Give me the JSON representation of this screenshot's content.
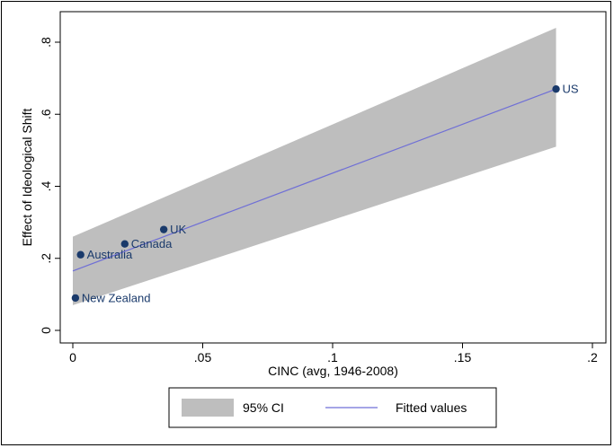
{
  "chart_data": {
    "type": "scatter",
    "title": "",
    "xlabel": "CINC (avg, 1946-2008)",
    "ylabel": "Effect of Ideological Shift",
    "xlim": [
      0,
      0.2
    ],
    "ylim": [
      0,
      0.8
    ],
    "x_ticks": [
      {
        "value": 0,
        "label": "0"
      },
      {
        "value": 0.05,
        "label": ".05"
      },
      {
        "value": 0.1,
        "label": ".1"
      },
      {
        "value": 0.15,
        "label": ".15"
      },
      {
        "value": 0.2,
        "label": ".2"
      }
    ],
    "y_ticks": [
      {
        "value": 0,
        "label": "0"
      },
      {
        "value": 0.2,
        "label": ".2"
      },
      {
        "value": 0.4,
        "label": ".4"
      },
      {
        "value": 0.6,
        "label": ".6"
      },
      {
        "value": 0.8,
        "label": ".8"
      }
    ],
    "points": [
      {
        "label": "New Zealand",
        "x": 0.001,
        "y": 0.09
      },
      {
        "label": "Australia",
        "x": 0.003,
        "y": 0.21
      },
      {
        "label": "Canada",
        "x": 0.02,
        "y": 0.24
      },
      {
        "label": "UK",
        "x": 0.035,
        "y": 0.28
      },
      {
        "label": "US",
        "x": 0.186,
        "y": 0.67
      }
    ],
    "fitted_line": {
      "x": [
        0.0,
        0.186
      ],
      "y": [
        0.165,
        0.67
      ]
    },
    "ci_band": {
      "x": [
        0.0,
        0.186
      ],
      "upper": [
        0.26,
        0.84
      ],
      "lower": [
        0.07,
        0.51
      ]
    },
    "legend": {
      "placement": "bottom",
      "entries": [
        {
          "label": "95% CI"
        },
        {
          "label": "Fitted values"
        }
      ]
    },
    "colors": {
      "ci": "#bebebe",
      "line": "#6f6fd6",
      "marker": "#1a3a6b",
      "label": "#1a3a6b"
    },
    "grid": false
  }
}
